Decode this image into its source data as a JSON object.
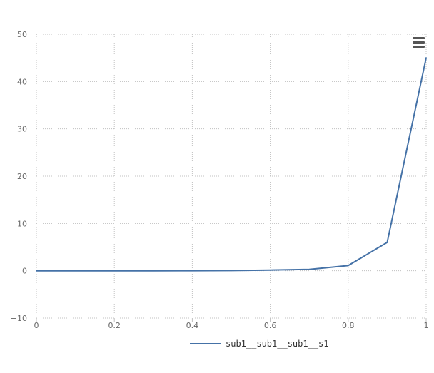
{
  "chart_data": {
    "type": "line",
    "title": "",
    "xlabel": "",
    "ylabel": "",
    "xlim": [
      0,
      1
    ],
    "ylim": [
      -10,
      50
    ],
    "x_ticks": [
      0,
      0.2,
      0.4,
      0.6,
      0.8,
      1
    ],
    "x_tick_labels": [
      "0",
      "0.2",
      "0.4",
      "0.6",
      "0.8",
      "1"
    ],
    "y_ticks": [
      -10,
      0,
      10,
      20,
      30,
      40,
      50
    ],
    "y_tick_labels": [
      "−10",
      "0",
      "10",
      "20",
      "30",
      "40",
      "50"
    ],
    "grid": true,
    "legend_position": "bottom-center",
    "series": [
      {
        "name": "sub1__sub1__sub1__s1",
        "color": "#4572a7",
        "x": [
          0,
          0.1,
          0.2,
          0.3,
          0.4,
          0.5,
          0.6,
          0.7,
          0.8,
          0.9,
          1.0
        ],
        "y": [
          0,
          0,
          0,
          0,
          0.01,
          0.04,
          0.15,
          0.3,
          1.1,
          6,
          45
        ]
      }
    ]
  },
  "toolbar": {
    "menu_icon": "hamburger-menu-icon"
  }
}
